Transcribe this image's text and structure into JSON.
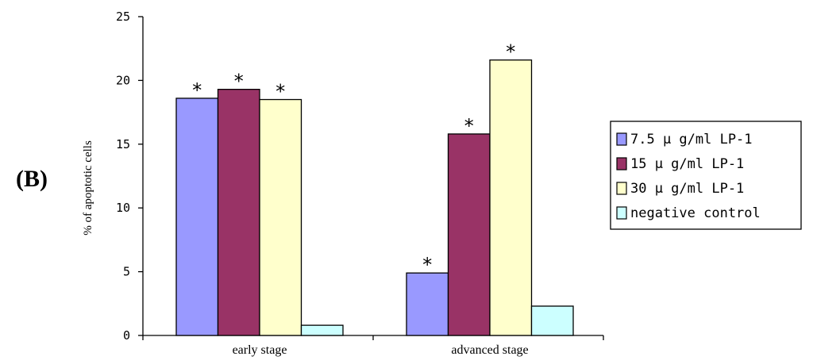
{
  "panel_label": "(B)",
  "chart_data": {
    "type": "bar",
    "ylabel": "% of apoptotic cells",
    "ylim": [
      0,
      25
    ],
    "yticks": [
      "0",
      "5",
      "10",
      "15",
      "20",
      "25"
    ],
    "categories": [
      "early stage",
      "advanced stage"
    ],
    "significance_marker": "*",
    "series": [
      {
        "name": "7.5 μ g/ml LP-1",
        "color": "#9999ff",
        "values": [
          18.6,
          4.9
        ],
        "significant": [
          true,
          true
        ]
      },
      {
        "name": "15 μ g/ml LP-1",
        "color": "#993366",
        "values": [
          19.3,
          15.8
        ],
        "significant": [
          true,
          true
        ]
      },
      {
        "name": "30 μ g/ml LP-1",
        "color": "#ffffcc",
        "values": [
          18.5,
          21.6
        ],
        "significant": [
          true,
          true
        ]
      },
      {
        "name": "negative control",
        "color": "#ccffff",
        "values": [
          0.8,
          2.3
        ],
        "significant": [
          false,
          false
        ]
      }
    ],
    "grid": false,
    "legend_position": "right"
  }
}
